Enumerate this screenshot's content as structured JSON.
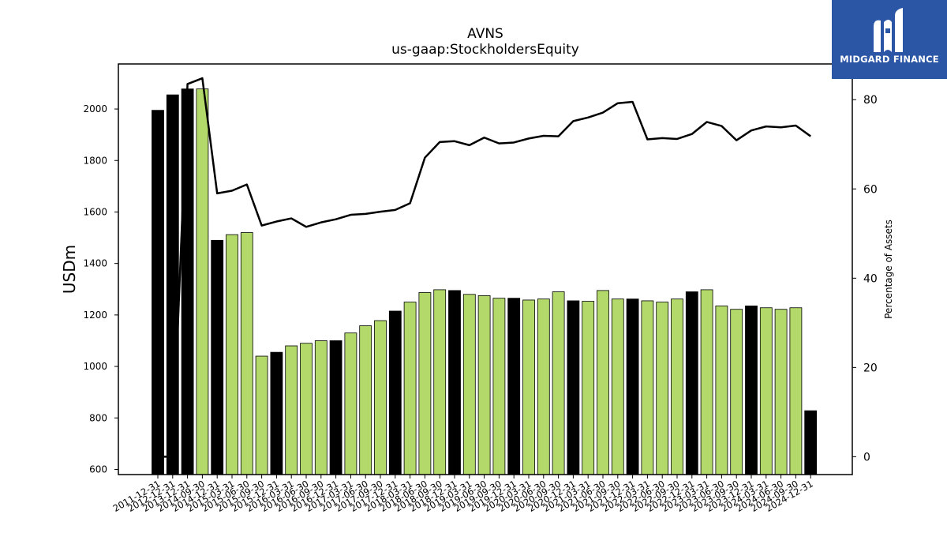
{
  "chart_data": {
    "type": "bar",
    "title": "AVNS",
    "subtitle": "us-gaap:StockholdersEquity",
    "ylabel": "USDm",
    "y2label": "Percentage of Assets",
    "ylim": [
      580,
      2175
    ],
    "y2lim": [
      -4,
      88
    ],
    "yticks": [
      600,
      800,
      1000,
      1200,
      1400,
      1600,
      1800,
      2000
    ],
    "y2ticks": [
      0,
      20,
      40,
      60,
      80
    ],
    "categories": [
      "2011-12-31",
      "2012-12-31",
      "2013-12-31",
      "2014-09-30",
      "2014-12-31",
      "2015-03-31",
      "2015-06-30",
      "2015-09-30",
      "2015-12-31",
      "2016-03-31",
      "2016-06-30",
      "2016-09-30",
      "2016-12-31",
      "2017-03-31",
      "2017-06-30",
      "2017-09-30",
      "2017-12-31",
      "2018-03-31",
      "2018-06-30",
      "2018-09-30",
      "2018-12-31",
      "2019-03-31",
      "2019-06-30",
      "2019-09-30",
      "2019-12-31",
      "2020-03-31",
      "2020-06-30",
      "2020-09-30",
      "2020-12-31",
      "2021-03-31",
      "2021-06-30",
      "2021-09-30",
      "2021-12-31",
      "2022-03-31",
      "2022-06-30",
      "2022-09-30",
      "2022-12-31",
      "2023-03-31",
      "2023-06-30",
      "2023-09-30",
      "2023-12-31",
      "2024-03-31",
      "2024-06-30",
      "2024-09-30",
      "2024-12-31"
    ],
    "series": [
      {
        "values": [
          1995,
          2055,
          2078,
          2078,
          1490,
          1512,
          1520,
          1040,
          1055,
          1080,
          1090,
          1100,
          1100,
          1130,
          1158,
          1178,
          1215,
          1250,
          1287,
          1298,
          1295,
          1280,
          1275,
          1265,
          1265,
          1258,
          1262,
          1290,
          1255,
          1253,
          1295,
          1262,
          1262,
          1255,
          1250,
          1262,
          1290,
          1298,
          1235,
          1222,
          1235,
          1228,
          1222,
          1228,
          828
        ],
        "bar_kinds": [
          "annual",
          "annual",
          "annual",
          "quarterly",
          "annual",
          "quarterly",
          "quarterly",
          "quarterly",
          "annual",
          "quarterly",
          "quarterly",
          "quarterly",
          "annual",
          "quarterly",
          "quarterly",
          "quarterly",
          "annual",
          "quarterly",
          "quarterly",
          "quarterly",
          "annual",
          "quarterly",
          "quarterly",
          "quarterly",
          "annual",
          "quarterly",
          "quarterly",
          "quarterly",
          "annual",
          "quarterly",
          "quarterly",
          "quarterly",
          "annual",
          "quarterly",
          "quarterly",
          "quarterly",
          "annual",
          "quarterly",
          "quarterly",
          "quarterly",
          "annual",
          "quarterly",
          "quarterly",
          "quarterly",
          "annual"
        ]
      },
      {
        "axis": "right",
        "values": [
          0,
          0,
          83.5,
          84.8,
          59.0,
          59.6,
          61.0,
          51.8,
          52.7,
          53.4,
          51.5,
          52.5,
          53.2,
          54.2,
          54.4,
          54.9,
          55.3,
          56.8,
          67.0,
          70.5,
          70.7,
          69.8,
          71.5,
          70.2,
          70.4,
          71.3,
          71.9,
          71.8,
          75.2,
          76.0,
          77.1,
          79.2,
          79.5,
          71.1,
          71.4,
          71.2,
          72.3,
          75.0,
          74.1,
          70.9,
          73.1,
          74.0,
          73.8,
          74.2,
          71.8
        ]
      }
    ],
    "colors": {
      "annual": "#000000",
      "quarterly": "#b3d96b",
      "bar_edge": "#000000",
      "line": "#000000"
    },
    "grid": false
  },
  "logo": {
    "text": "MIDGARD FINANCE",
    "background": "#2b56a6"
  }
}
